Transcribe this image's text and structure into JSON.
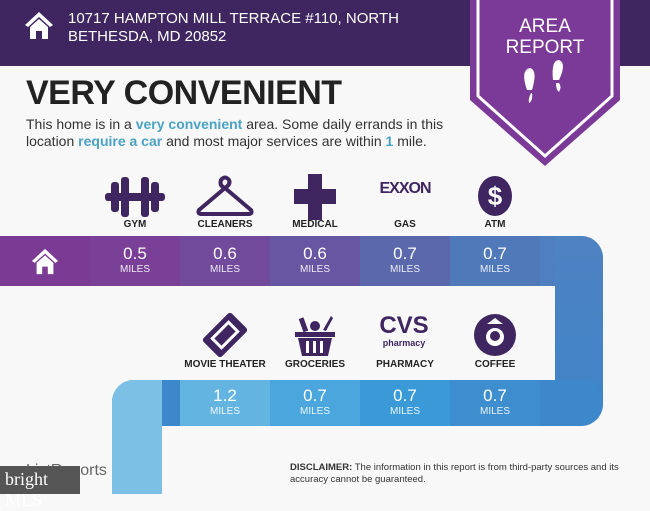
{
  "header": {
    "address": "10717 HAMPTON MILL TERRACE #110, NORTH BETHESDA, MD 20852",
    "badge_line1": "AREA",
    "badge_line2": "REPORT"
  },
  "summary": {
    "title": "VERY CONVENIENT",
    "desc_1": "This home is in a ",
    "desc_hl1": "very convenient",
    "desc_2": " area. Some daily errands in this location ",
    "desc_hl2": "require a car",
    "desc_3": " and most major services are within ",
    "desc_hl3": "1",
    "desc_4": " mile."
  },
  "unit": "MILES",
  "top_row": [
    {
      "label": "GYM",
      "distance": "0.5",
      "icon": "dumbbell-icon"
    },
    {
      "label": "CLEANERS",
      "distance": "0.6",
      "icon": "hanger-icon"
    },
    {
      "label": "MEDICAL",
      "distance": "0.6",
      "icon": "medical-cross-icon"
    },
    {
      "label": "GAS",
      "distance": "0.7",
      "icon": "exxon-logo",
      "logo_text": "EXXON"
    },
    {
      "label": "ATM",
      "distance": "0.7",
      "icon": "dollar-icon"
    }
  ],
  "bottom_row": [
    {
      "label": "MOVIE THEATER",
      "distance": "1.2",
      "icon": "ticket-icon"
    },
    {
      "label": "GROCERIES",
      "distance": "0.7",
      "icon": "grocery-basket-icon"
    },
    {
      "label": "PHARMACY",
      "distance": "0.7",
      "icon": "cvs-logo",
      "logo_text": "CVS pharmacy"
    },
    {
      "label": "COFFEE",
      "distance": "0.7",
      "icon": "starbucks-logo"
    }
  ],
  "footer": {
    "disclaimer_label": "DISCLAIMER:",
    "disclaimer": " The information in this report is from third-party sources and its accuracy cannot be guaranteed.",
    "listreports": "ListReports",
    "watermark": "bright MLS"
  },
  "colors": {
    "header": "#3f2660",
    "badge": "#7b3a98",
    "icon": "#3f2660",
    "accent": "#4aa3c4"
  }
}
